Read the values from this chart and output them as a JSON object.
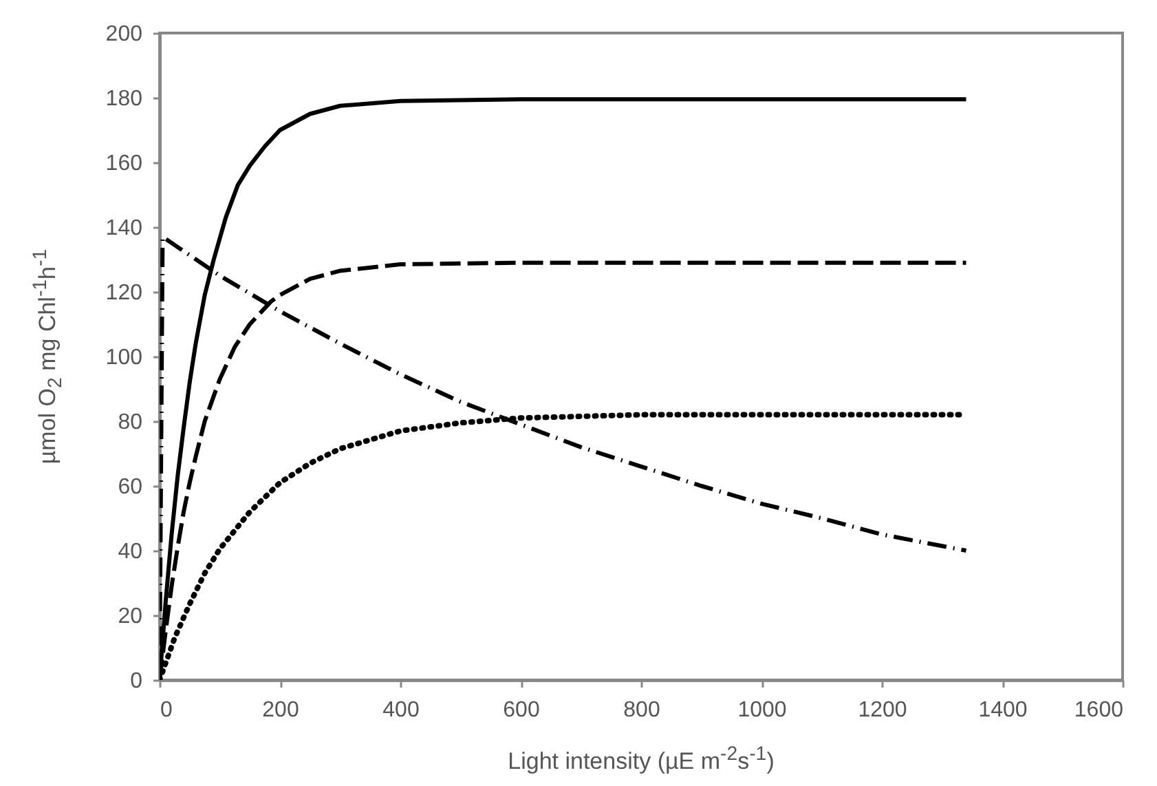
{
  "chart_data": {
    "type": "line",
    "xlabel": "Light intensity (µE m$^{-2}$s$^{-1}$)",
    "ylabel": "µmol O$_{2}$ mg Chl$^{-1}$h$^{-1}$",
    "xlim": [
      0,
      1600
    ],
    "ylim": [
      0,
      200
    ],
    "xticks": [
      0,
      200,
      400,
      600,
      800,
      1000,
      1200,
      1400,
      1600
    ],
    "yticks": [
      0,
      20,
      40,
      60,
      80,
      100,
      120,
      140,
      160,
      180,
      200
    ],
    "series": [
      {
        "color": "#000000",
        "line_style": "solid",
        "x": [
          0,
          10,
          20,
          30,
          40,
          50,
          60,
          75,
          90,
          110,
          130,
          150,
          175,
          200,
          250,
          300,
          400,
          600,
          1000,
          1340
        ],
        "values": [
          0,
          24,
          45,
          63,
          78,
          92,
          104,
          119,
          130,
          143,
          153,
          159,
          165,
          170,
          175,
          177.5,
          179,
          179.5,
          179.5,
          179.5
        ]
      },
      {
        "color": "#000000",
        "line_style": "dashed",
        "x": [
          0,
          10,
          20,
          30,
          40,
          50,
          60,
          75,
          100,
          125,
          150,
          185,
          200,
          250,
          300,
          400,
          600,
          1340
        ],
        "values": [
          0,
          15,
          29,
          41,
          52,
          61,
          69,
          80,
          93,
          103,
          110,
          117,
          119,
          124,
          126.5,
          128.5,
          129,
          129
        ]
      },
      {
        "color": "#000000",
        "line_style": "dotted",
        "x": [
          0,
          25,
          50,
          75,
          100,
          150,
          200,
          250,
          300,
          400,
          500,
          600,
          800,
          1340
        ],
        "values": [
          0,
          13,
          23.5,
          33,
          40.5,
          52,
          61,
          67,
          71.5,
          77,
          79.5,
          81,
          82,
          82
        ]
      },
      {
        "color": "#000000",
        "line_style": "dashdot",
        "x": [
          0,
          5,
          100,
          200,
          300,
          400,
          500,
          600,
          700,
          800,
          900,
          1000,
          1100,
          1200,
          1340
        ],
        "values": [
          0,
          137,
          125,
          114,
          104,
          94.5,
          86,
          79,
          72,
          66,
          60,
          54.5,
          50,
          45,
          40
        ]
      }
    ]
  }
}
